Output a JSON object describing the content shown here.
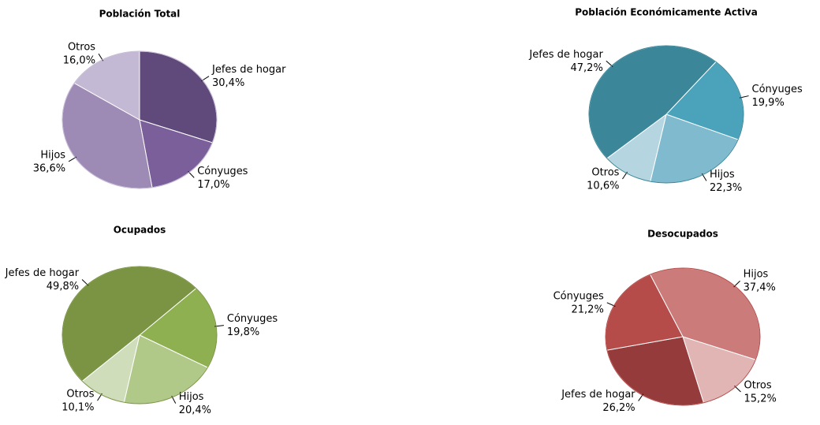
{
  "chart_data": [
    {
      "type": "pie",
      "title": "Población Total",
      "categories": [
        "Jefes de hogar",
        "Cónyuges",
        "Hijos",
        "Otros"
      ],
      "values": [
        30.4,
        17.0,
        36.6,
        16.0
      ],
      "value_labels": [
        "30,4%",
        "17,0%",
        "36,6%",
        "16,0%"
      ],
      "colors": [
        "#5f4a7b",
        "#7a5f9b",
        "#9d8ab5",
        "#c4b9d4"
      ]
    },
    {
      "type": "pie",
      "title": "Población Económicamente Activa",
      "categories": [
        "Cónyuges",
        "Hijos",
        "Otros",
        "Jefes de hogar"
      ],
      "values": [
        19.9,
        22.3,
        10.6,
        47.2
      ],
      "value_labels": [
        "19,9%",
        "22,3%",
        "10,6%",
        "47,2%"
      ],
      "colors": [
        "#4aa3bb",
        "#7fbace",
        "#b5d5e0",
        "#3b8799"
      ]
    },
    {
      "type": "pie",
      "title": "Ocupados",
      "categories": [
        "Cónyuges",
        "Hijos",
        "Otros",
        "Jefes de hogar"
      ],
      "values": [
        19.8,
        20.4,
        10.1,
        49.8
      ],
      "value_labels": [
        "19,8%",
        "20,4%",
        "10,1%",
        "49,8%"
      ],
      "colors": [
        "#8fb050",
        "#b0c888",
        "#d0ddbb",
        "#7a9443"
      ]
    },
    {
      "type": "pie",
      "title": "Desocupados",
      "categories": [
        "Hijos",
        "Otros",
        "Jefes de hogar",
        "Cónyuges"
      ],
      "values": [
        37.4,
        15.2,
        26.2,
        21.2
      ],
      "value_labels": [
        "37,4%",
        "15,2%",
        "26,2%",
        "21,2%"
      ],
      "colors": [
        "#cc7b7b",
        "#e2b5b5",
        "#963b3b",
        "#b54c4a"
      ]
    }
  ]
}
